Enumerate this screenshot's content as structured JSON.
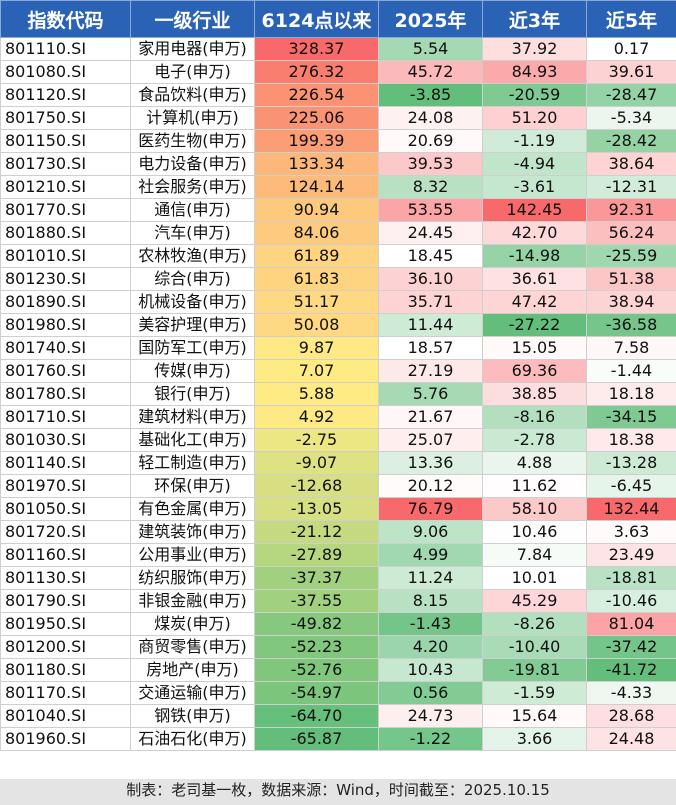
{
  "headers": [
    "指数代码",
    "一级行业",
    "6124点以来",
    "2025年",
    "近3年",
    "近5年"
  ],
  "rows": [
    [
      "801110.SI",
      "家用电器(申万)",
      "328.37",
      "5.54",
      "37.92",
      "0.17"
    ],
    [
      "801080.SI",
      "电子(申万)",
      "276.32",
      "45.72",
      "84.93",
      "39.61"
    ],
    [
      "801120.SI",
      "食品饮料(申万)",
      "226.54",
      "-3.85",
      "-20.59",
      "-28.47"
    ],
    [
      "801750.SI",
      "计算机(申万)",
      "225.06",
      "24.08",
      "51.20",
      "-5.34"
    ],
    [
      "801150.SI",
      "医药生物(申万)",
      "199.39",
      "20.69",
      "-1.19",
      "-28.42"
    ],
    [
      "801730.SI",
      "电力设备(申万)",
      "133.34",
      "39.53",
      "-4.94",
      "38.64"
    ],
    [
      "801210.SI",
      "社会服务(申万)",
      "124.14",
      "8.32",
      "-3.61",
      "-12.31"
    ],
    [
      "801770.SI",
      "通信(申万)",
      "90.94",
      "53.55",
      "142.45",
      "92.31"
    ],
    [
      "801880.SI",
      "汽车(申万)",
      "84.06",
      "24.45",
      "42.70",
      "56.24"
    ],
    [
      "801010.SI",
      "农林牧渔(申万)",
      "61.89",
      "18.45",
      "-14.98",
      "-25.59"
    ],
    [
      "801230.SI",
      "综合(申万)",
      "61.83",
      "36.10",
      "36.61",
      "51.38"
    ],
    [
      "801890.SI",
      "机械设备(申万)",
      "51.17",
      "35.71",
      "47.42",
      "38.94"
    ],
    [
      "801980.SI",
      "美容护理(申万)",
      "50.08",
      "11.44",
      "-27.22",
      "-36.58"
    ],
    [
      "801740.SI",
      "国防军工(申万)",
      "9.87",
      "18.57",
      "15.05",
      "7.58"
    ],
    [
      "801760.SI",
      "传媒(申万)",
      "7.07",
      "27.19",
      "69.36",
      "-1.44"
    ],
    [
      "801780.SI",
      "银行(申万)",
      "5.88",
      "5.76",
      "38.85",
      "18.18"
    ],
    [
      "801710.SI",
      "建筑材料(申万)",
      "4.92",
      "21.67",
      "-8.16",
      "-34.15"
    ],
    [
      "801030.SI",
      "基础化工(申万)",
      "-2.75",
      "25.07",
      "-2.78",
      "18.38"
    ],
    [
      "801140.SI",
      "轻工制造(申万)",
      "-9.07",
      "13.36",
      "4.88",
      "-13.28"
    ],
    [
      "801970.SI",
      "环保(申万)",
      "-12.68",
      "20.12",
      "11.62",
      "-6.45"
    ],
    [
      "801050.SI",
      "有色金属(申万)",
      "-13.05",
      "76.79",
      "58.10",
      "132.44"
    ],
    [
      "801720.SI",
      "建筑装饰(申万)",
      "-21.12",
      "9.06",
      "10.46",
      "3.63"
    ],
    [
      "801160.SI",
      "公用事业(申万)",
      "-27.89",
      "4.99",
      "7.84",
      "23.49"
    ],
    [
      "801130.SI",
      "纺织服饰(申万)",
      "-37.37",
      "11.24",
      "10.01",
      "-18.81"
    ],
    [
      "801790.SI",
      "非银金融(申万)",
      "-37.55",
      "8.15",
      "45.29",
      "-10.46"
    ],
    [
      "801950.SI",
      "煤炭(申万)",
      "-49.82",
      "-1.43",
      "-8.26",
      "81.04"
    ],
    [
      "801200.SI",
      "商贸零售(申万)",
      "-52.23",
      "4.20",
      "-10.40",
      "-37.42"
    ],
    [
      "801180.SI",
      "房地产(申万)",
      "-52.76",
      "10.43",
      "-19.81",
      "-41.72"
    ],
    [
      "801170.SI",
      "交通运输(申万)",
      "-54.97",
      "0.56",
      "-1.59",
      "-4.33"
    ],
    [
      "801040.SI",
      "钢铁(申万)",
      "-64.70",
      "24.73",
      "15.64",
      "28.68"
    ],
    [
      "801960.SI",
      "石油石化(申万)",
      "-65.87",
      "-1.22",
      "3.66",
      "24.48"
    ]
  ],
  "colors": {
    "header_bg": "#2a62b5",
    "header_text": "#ffffff",
    "scale_high": "#f8696b",
    "scale_mid": "#ffeb84",
    "scale_low": "#63be7b",
    "footer_bg": "#e4e4e4"
  },
  "footer": "制表：老司基一枚，数据来源：Wind，时间截至：2025.10.15"
}
